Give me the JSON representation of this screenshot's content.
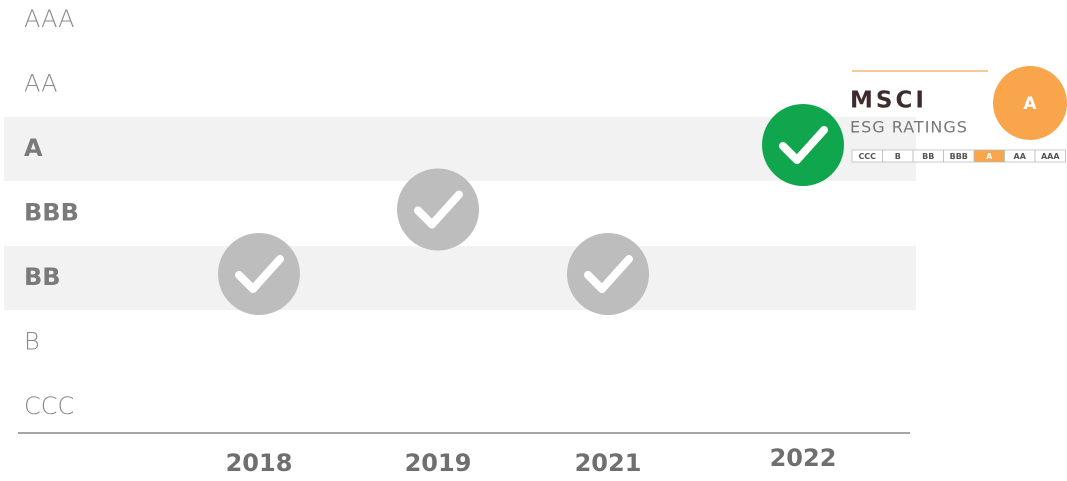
{
  "chart_data": {
    "type": "rating-history",
    "ratings": [
      "AAA",
      "AA",
      "A",
      "BBB",
      "BB",
      "B",
      "CCC"
    ],
    "categories": [
      "2018",
      "2019",
      "2021",
      "2022"
    ],
    "values": [
      "BB",
      "BBB",
      "BB",
      "A"
    ],
    "color": "#bdbdbd",
    "latest_color": "#10a64e"
  },
  "badge": {
    "brand": "MSCI",
    "subtitle": "ESG RATINGS",
    "scale": [
      "CCC",
      "B",
      "BB",
      "BBB",
      "A",
      "AA",
      "AAA"
    ],
    "rating": "A",
    "color": "#f8a54c"
  }
}
